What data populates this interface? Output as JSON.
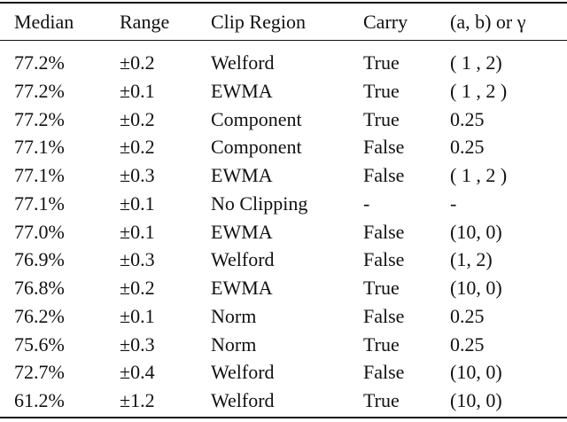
{
  "table": {
    "header": [
      "Median",
      "Range",
      "Clip Region",
      "Carry",
      "(a, b) or γ"
    ],
    "rows": [
      [
        "77.2%",
        "±0.2",
        "Welford",
        "True",
        "( 1 , 2)"
      ],
      [
        "77.2%",
        "±0.1",
        "EWMA",
        "True",
        "( 1 , 2 )"
      ],
      [
        "77.2%",
        "±0.2",
        "Component",
        "True",
        "0.25"
      ],
      [
        "77.1%",
        "±0.2",
        "Component",
        "False",
        "0.25"
      ],
      [
        "77.1%",
        "±0.3",
        "EWMA",
        "False",
        "( 1 , 2 )"
      ],
      [
        "77.1%",
        "±0.1",
        "No Clipping",
        "-",
        "-"
      ],
      [
        "77.0%",
        "±0.1",
        "EWMA",
        "False",
        "(10, 0)"
      ],
      [
        "76.9%",
        "±0.3",
        "Welford",
        "False",
        "(1, 2)"
      ],
      [
        "76.8%",
        "±0.2",
        "EWMA",
        "True",
        "(10, 0)"
      ],
      [
        "76.2%",
        "±0.1",
        "Norm",
        "False",
        "0.25"
      ],
      [
        "75.6%",
        "±0.3",
        "Norm",
        "True",
        "0.25"
      ],
      [
        "72.7%",
        "±0.4",
        "Welford",
        "False",
        "(10, 0)"
      ],
      [
        "61.2%",
        "±1.2",
        "Welford",
        "True",
        "(10, 0)"
      ]
    ]
  }
}
